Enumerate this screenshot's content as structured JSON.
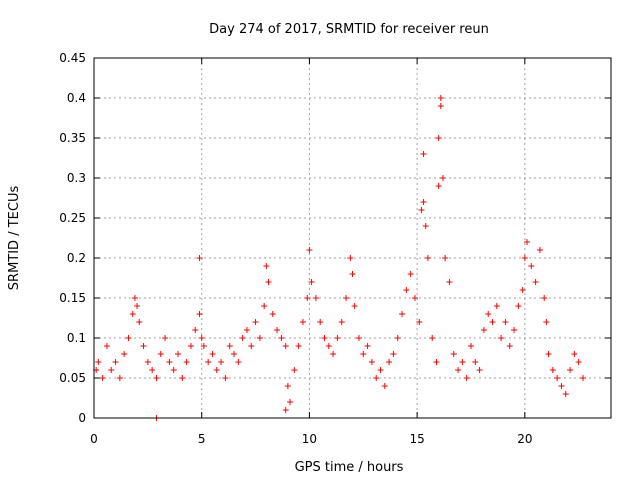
{
  "chart_data": {
    "type": "scatter",
    "title": "Day 274 of 2017, SRMTID for receiver reun",
    "xlabel": "GPS time / hours",
    "ylabel": "SRMTID / TECUs",
    "xlim": [
      0,
      24
    ],
    "ylim": [
      0,
      0.45
    ],
    "xticks": [
      0,
      5,
      10,
      15,
      20
    ],
    "xtick_labels": [
      "0",
      "5",
      "10",
      "15",
      "20"
    ],
    "yticks": [
      0,
      0.05,
      0.1,
      0.15,
      0.2,
      0.25,
      0.3,
      0.35,
      0.4,
      0.45
    ],
    "ytick_labels": [
      "0",
      "0.05",
      "0.1",
      "0.15",
      "0.2",
      "0.25",
      "0.3",
      "0.35",
      "0.4",
      "0.45"
    ],
    "grid": true,
    "marker": "plus",
    "marker_color": "#ff0000",
    "series": [
      {
        "name": "SRMTID",
        "x": [
          0.1,
          0.2,
          0.4,
          0.6,
          0.8,
          1.0,
          1.2,
          1.4,
          1.6,
          1.8,
          1.9,
          2.0,
          2.1,
          2.3,
          2.5,
          2.7,
          2.9,
          3.1,
          3.3,
          3.5,
          3.7,
          3.9,
          4.1,
          4.3,
          4.5,
          4.7,
          4.9,
          5.0,
          5.1,
          5.3,
          5.5,
          5.7,
          5.9,
          6.1,
          6.3,
          6.5,
          6.7,
          6.9,
          7.1,
          7.3,
          7.5,
          7.7,
          7.9,
          8.0,
          8.1,
          8.3,
          8.5,
          8.7,
          8.9,
          9.0,
          9.1,
          9.3,
          9.5,
          9.7,
          9.9,
          10.0,
          10.1,
          10.3,
          10.5,
          10.7,
          10.9,
          11.1,
          11.3,
          11.5,
          11.7,
          11.9,
          12.0,
          12.1,
          12.3,
          12.5,
          12.7,
          12.9,
          13.1,
          13.3,
          13.5,
          13.7,
          13.9,
          14.1,
          14.3,
          14.5,
          14.7,
          14.9,
          15.1,
          15.2,
          15.3,
          15.4,
          15.5,
          15.7,
          15.9,
          16.0,
          16.1,
          16.2,
          16.3,
          16.5,
          16.7,
          16.9,
          17.1,
          17.3,
          17.5,
          17.7,
          17.9,
          18.1,
          18.3,
          18.5,
          18.7,
          18.9,
          19.1,
          19.3,
          19.5,
          19.7,
          19.9,
          20.0,
          20.1,
          20.3,
          20.5,
          20.7,
          20.9,
          21.0,
          21.1,
          21.3,
          21.5,
          21.7,
          21.9,
          22.1,
          22.3,
          22.5,
          22.7,
          2.9,
          8.9,
          4.9,
          15.3,
          16.0,
          16.1
        ],
        "y": [
          0.06,
          0.07,
          0.05,
          0.09,
          0.06,
          0.07,
          0.05,
          0.08,
          0.1,
          0.13,
          0.15,
          0.14,
          0.12,
          0.09,
          0.07,
          0.06,
          0.05,
          0.08,
          0.1,
          0.07,
          0.06,
          0.08,
          0.05,
          0.07,
          0.09,
          0.11,
          0.13,
          0.1,
          0.09,
          0.07,
          0.08,
          0.06,
          0.07,
          0.05,
          0.09,
          0.08,
          0.07,
          0.1,
          0.11,
          0.09,
          0.12,
          0.1,
          0.14,
          0.19,
          0.17,
          0.13,
          0.11,
          0.1,
          0.09,
          0.04,
          0.02,
          0.06,
          0.09,
          0.12,
          0.15,
          0.21,
          0.17,
          0.15,
          0.12,
          0.1,
          0.09,
          0.08,
          0.1,
          0.12,
          0.15,
          0.2,
          0.18,
          0.14,
          0.1,
          0.08,
          0.09,
          0.07,
          0.05,
          0.06,
          0.04,
          0.07,
          0.08,
          0.1,
          0.13,
          0.16,
          0.18,
          0.15,
          0.12,
          0.26,
          0.33,
          0.24,
          0.2,
          0.1,
          0.07,
          0.35,
          0.4,
          0.3,
          0.2,
          0.17,
          0.08,
          0.06,
          0.07,
          0.05,
          0.09,
          0.07,
          0.06,
          0.11,
          0.13,
          0.12,
          0.14,
          0.1,
          0.12,
          0.09,
          0.11,
          0.14,
          0.16,
          0.2,
          0.22,
          0.19,
          0.17,
          0.21,
          0.15,
          0.12,
          0.08,
          0.06,
          0.05,
          0.04,
          0.03,
          0.06,
          0.08,
          0.07,
          0.05,
          0.0,
          0.01,
          0.2,
          0.27,
          0.29,
          0.39
        ]
      }
    ]
  }
}
